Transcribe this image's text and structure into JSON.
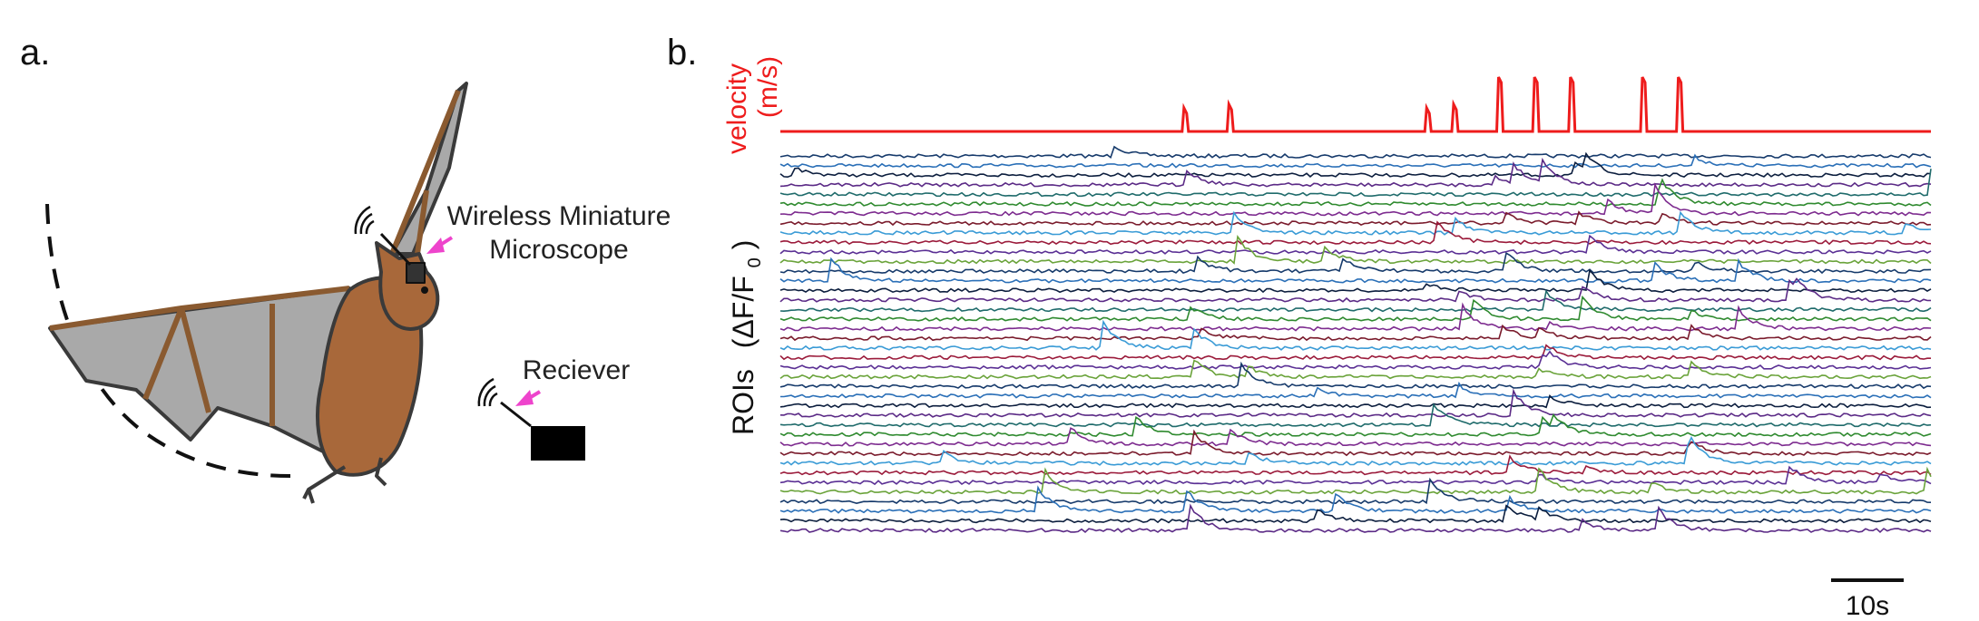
{
  "panel_a": {
    "label": "a.",
    "microscope_label_line1": "Wireless Miniature",
    "microscope_label_line2": "Microscope",
    "receiver_label": "Reciever"
  },
  "panel_b": {
    "label": "b.",
    "velocity_label_line1": "velocity",
    "velocity_label_line2": "(m/s)",
    "roi_label_main": "ROIs",
    "roi_label_formula": "(ΔF/F",
    "roi_label_sub": "0",
    "roi_label_close": ")",
    "scale_bar_label": "10s"
  },
  "colors": {
    "velocity": "#ee1c1c",
    "bat_fur": "#a8683a",
    "bat_wing": "#a9a9a9",
    "callout_arrow": "#ee44cc",
    "trace_palette": [
      "#163a6b",
      "#2a6fb7",
      "#0c1e3e",
      "#5b2a86",
      "#1f6b6b",
      "#2f8a2f",
      "#7d2b8f",
      "#7a1b2c",
      "#3a9bd6",
      "#9b1b3b",
      "#5a2f94",
      "#6aa33a"
    ]
  },
  "icons": [
    "wireless-signal-icon",
    "receiver-box-icon",
    "bat-illustration"
  ],
  "chart_data": {
    "type": "line",
    "title": "",
    "xlabel": "",
    "ylabel": "ROIs (ΔF/F0)",
    "velocity_series": {
      "name": "velocity (m/s)",
      "flight_onsets_s": [
        45,
        50,
        72,
        75,
        80,
        84,
        88,
        96,
        100
      ]
    },
    "roi_trace_count": 40,
    "time_span_s": 128,
    "scale_bar_s": 10
  }
}
